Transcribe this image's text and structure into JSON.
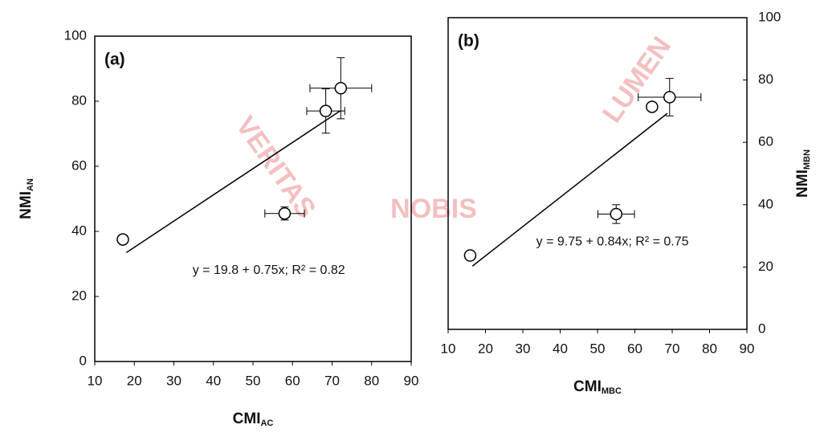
{
  "watermark": [
    "VERITAS",
    "NOBIS",
    "LUMEN"
  ],
  "chart_data": [
    {
      "type": "scatter",
      "panel_label": "(a)",
      "xlabel": "CMI",
      "xlabel_sub": "AC",
      "ylabel": "NMI",
      "ylabel_sub": "AN",
      "annotation": "y = 19.8 + 0.75x; R² = 0.82",
      "x": [
        17.1,
        58,
        68.4,
        72.2
      ],
      "values": [
        37.5,
        45.5,
        77,
        84
      ],
      "xerr": [
        null,
        5,
        4.8,
        7.8
      ],
      "yerr": [
        null,
        2,
        6.8,
        9.4
      ],
      "fit_line": {
        "x": [
          18,
          72
        ],
        "values": [
          33.5,
          77
        ]
      },
      "xlim": [
        10,
        90
      ],
      "ylim": [
        0,
        100
      ],
      "xticks": [
        10,
        20,
        30,
        40,
        50,
        60,
        70,
        80,
        90
      ],
      "yticks": [
        0,
        20,
        40,
        60,
        80,
        100
      ],
      "y_axis_side": "left",
      "color": "#000000"
    },
    {
      "type": "scatter",
      "panel_label": "(b)",
      "xlabel": "CMI",
      "xlabel_sub": "MBC",
      "ylabel": "NMI",
      "ylabel_sub": "MBN",
      "annotation": "y = 9.75 + 0.84x; R² = 0.75",
      "x": [
        15.9,
        55,
        64.6,
        69.3
      ],
      "values": [
        23.7,
        37,
        71.4,
        74.5
      ],
      "xerr": [
        null,
        4.9,
        null,
        8.4
      ],
      "yerr": [
        null,
        3,
        null,
        6
      ],
      "fit_line": {
        "x": [
          16.5,
          68.7
        ],
        "values": [
          20.3,
          69.3
        ]
      },
      "xlim": [
        10,
        90
      ],
      "ylim": [
        0,
        100
      ],
      "xticks": [
        10,
        20,
        30,
        40,
        50,
        60,
        70,
        80,
        90
      ],
      "yticks": [
        0,
        20,
        40,
        60,
        80,
        100
      ],
      "y_axis_side": "right",
      "color": "#000000"
    }
  ]
}
